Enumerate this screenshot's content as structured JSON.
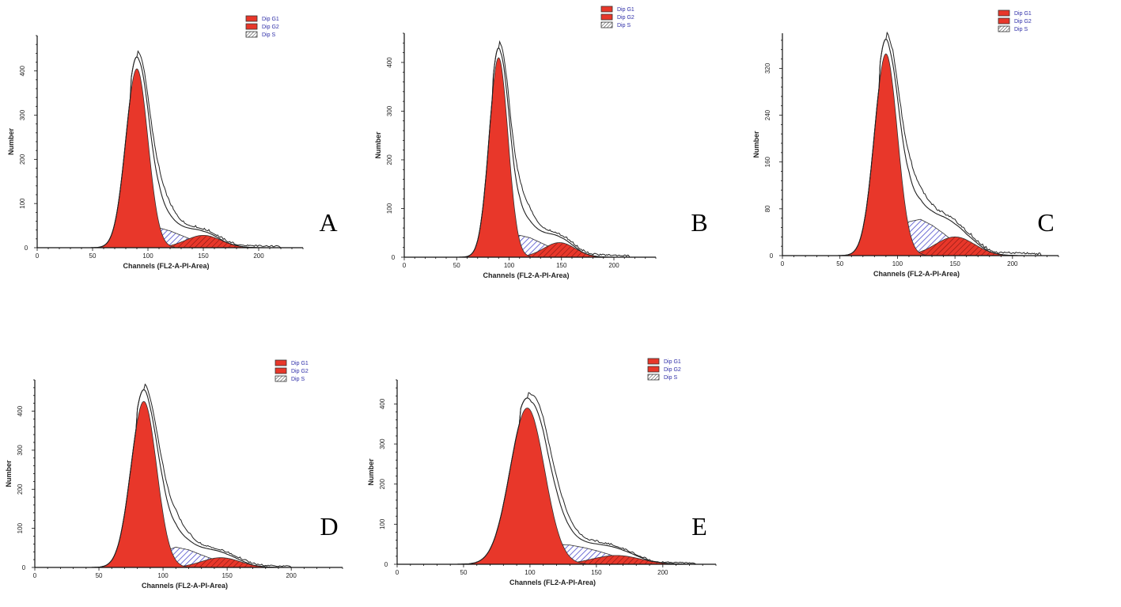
{
  "chart_data": [
    {
      "type": "area",
      "panel_label": "A",
      "xlabel": "Channels (FL2-A-PI-Area)",
      "ylabel": "Number",
      "xlim": [
        0,
        240
      ],
      "ylim": [
        0,
        480
      ],
      "x_ticks": [
        0,
        50,
        100,
        150,
        200
      ],
      "y_ticks": [
        0,
        100,
        200,
        300,
        400
      ],
      "legend": [
        "Dip G1",
        "Dip G2",
        "Dip S"
      ],
      "legend_position": "top-center",
      "colors": {
        "g1": "#e8372a",
        "g2": "#e8372a",
        "s": "#4b4bcc"
      },
      "series": [
        {
          "name": "Dip G1",
          "component": "g1",
          "peak": {
            "x": 90,
            "y": 405
          },
          "sd": 10
        },
        {
          "name": "Dip G2",
          "component": "g2",
          "peak": {
            "x": 150,
            "y": 28
          },
          "sd": 16
        },
        {
          "name": "Dip S",
          "component": "s",
          "x": [
            90,
            100,
            110,
            120,
            130,
            140,
            150,
            160,
            170
          ],
          "values": [
            0,
            30,
            45,
            38,
            28,
            18,
            9,
            4,
            0
          ]
        }
      ],
      "fit_envelope_peak": 432,
      "data_tail_end_x": 220
    },
    {
      "type": "area",
      "panel_label": "B",
      "xlabel": "Channels (FL2-A-PI-Area)",
      "ylabel": "Number",
      "xlim": [
        0,
        240
      ],
      "ylim": [
        0,
        460
      ],
      "x_ticks": [
        0,
        50,
        100,
        150,
        200
      ],
      "y_ticks": [
        0,
        100,
        200,
        300,
        400
      ],
      "legend": [
        "Dip G1",
        "Dip G2",
        "Dip S"
      ],
      "legend_position": "top-center",
      "colors": {
        "g1": "#e8372a",
        "g2": "#e8372a",
        "s": "#4b4bcc"
      },
      "series": [
        {
          "name": "Dip G1",
          "component": "g1",
          "peak": {
            "x": 90,
            "y": 410
          },
          "sd": 9
        },
        {
          "name": "Dip G2",
          "component": "g2",
          "peak": {
            "x": 148,
            "y": 30
          },
          "sd": 15
        },
        {
          "name": "Dip S",
          "component": "s",
          "x": [
            92,
            100,
            110,
            120,
            130,
            140,
            150,
            160,
            170
          ],
          "values": [
            0,
            32,
            45,
            40,
            30,
            20,
            10,
            4,
            0
          ]
        }
      ],
      "fit_envelope_peak": 430,
      "data_tail_end_x": 215
    },
    {
      "type": "area",
      "panel_label": "C",
      "xlabel": "Channels (FL2-A-PI-Area)",
      "ylabel": "Number",
      "xlim": [
        0,
        240
      ],
      "ylim": [
        0,
        380
      ],
      "x_ticks": [
        0,
        50,
        100,
        150,
        200
      ],
      "y_ticks": [
        0,
        80,
        160,
        240,
        320
      ],
      "legend": [
        "Dip G1",
        "Dip G2",
        "Dip S"
      ],
      "legend_position": "top-center",
      "colors": {
        "g1": "#e8372a",
        "g2": "#e8372a",
        "s": "#4b4bcc"
      },
      "series": [
        {
          "name": "Dip G1",
          "component": "g1",
          "peak": {
            "x": 90,
            "y": 345
          },
          "sd": 10
        },
        {
          "name": "Dip G2",
          "component": "g2",
          "peak": {
            "x": 150,
            "y": 32
          },
          "sd": 17
        },
        {
          "name": "Dip S",
          "component": "s",
          "x": [
            92,
            100,
            110,
            120,
            130,
            140,
            150,
            160,
            170,
            180
          ],
          "values": [
            0,
            30,
            58,
            62,
            52,
            38,
            22,
            10,
            4,
            0
          ]
        }
      ],
      "fit_envelope_peak": 370,
      "data_tail_end_x": 225
    },
    {
      "type": "area",
      "panel_label": "D",
      "xlabel": "Channels (FL2-A-PI-Area)",
      "ylabel": "Number",
      "xlim": [
        0,
        240
      ],
      "ylim": [
        0,
        480
      ],
      "x_ticks": [
        0,
        50,
        100,
        150,
        200
      ],
      "y_ticks": [
        0,
        100,
        200,
        300,
        400
      ],
      "legend": [
        "Dip G1",
        "Dip G2",
        "Dip S"
      ],
      "legend_position": "top-center",
      "colors": {
        "g1": "#e8372a",
        "g2": "#e8372a",
        "s": "#4b4bcc"
      },
      "series": [
        {
          "name": "Dip G1",
          "component": "g1",
          "peak": {
            "x": 85,
            "y": 425
          },
          "sd": 10
        },
        {
          "name": "Dip G2",
          "component": "g2",
          "peak": {
            "x": 145,
            "y": 25
          },
          "sd": 15
        },
        {
          "name": "Dip S",
          "component": "s",
          "x": [
            88,
            100,
            110,
            120,
            130,
            140,
            150,
            160,
            170
          ],
          "values": [
            0,
            40,
            52,
            45,
            32,
            20,
            10,
            4,
            0
          ]
        }
      ],
      "fit_envelope_peak": 455,
      "data_tail_end_x": 200
    },
    {
      "type": "area",
      "panel_label": "E",
      "xlabel": "Channels (FL2-A-PI-Area)",
      "ylabel": "Number",
      "xlim": [
        0,
        240
      ],
      "ylim": [
        0,
        460
      ],
      "x_ticks": [
        0,
        50,
        100,
        150,
        200
      ],
      "y_ticks": [
        0,
        100,
        200,
        300,
        400
      ],
      "legend": [
        "Dip G1",
        "Dip G2",
        "Dip S"
      ],
      "legend_position": "top-center",
      "colors": {
        "g1": "#e8372a",
        "g2": "#e8372a",
        "s": "#4b4bcc"
      },
      "series": [
        {
          "name": "Dip G1",
          "component": "g1",
          "peak": {
            "x": 98,
            "y": 390
          },
          "sd": 13
        },
        {
          "name": "Dip G2",
          "component": "g2",
          "peak": {
            "x": 165,
            "y": 22
          },
          "sd": 18
        },
        {
          "name": "Dip S",
          "component": "s",
          "x": [
            100,
            110,
            120,
            130,
            140,
            150,
            160,
            170,
            180,
            190
          ],
          "values": [
            0,
            40,
            50,
            48,
            42,
            34,
            24,
            14,
            6,
            0
          ]
        }
      ],
      "fit_envelope_peak": 415,
      "data_tail_end_x": 225
    }
  ]
}
